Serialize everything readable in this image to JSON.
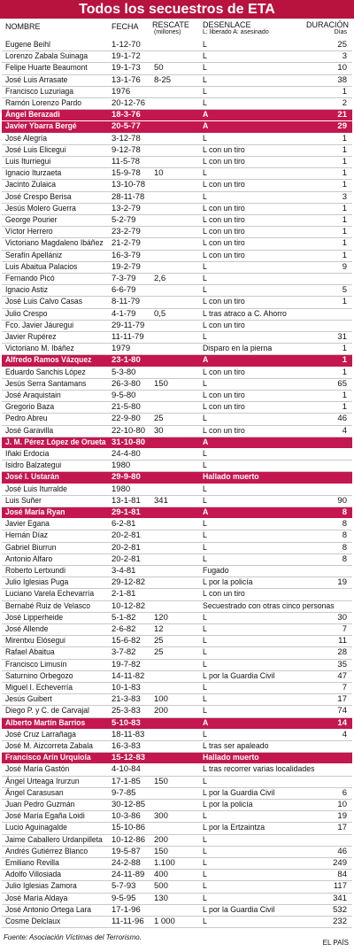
{
  "header": {
    "title": "Todos los secuestros de ETA"
  },
  "table": {
    "headers": {
      "name": "NOMBRE",
      "date": "FECHA",
      "ransom": "RESCATE",
      "ransom_unit": "(millones)",
      "outcome": "DESENLACE",
      "outcome_legend": "L: liberado A: asesinado",
      "days": "DURACIÓN",
      "days_unit": "Días"
    },
    "rows": [
      {
        "name": "Eugene Beihl",
        "date": "1-12-70",
        "outcome": "L",
        "days": "25"
      },
      {
        "name": "Lorenzo Zabala Suinaga",
        "date": "19-1-72",
        "outcome": "L",
        "days": "3"
      },
      {
        "name": "Felipe Huarte Beaumont",
        "date": "19-1-73",
        "ransom": "50",
        "outcome": "L",
        "days": "10"
      },
      {
        "name": "José Luis Arrasate",
        "date": "13-1-76",
        "ransom": "8-25",
        "outcome": "L",
        "days": "38"
      },
      {
        "name": "Francisco Luzuriaga",
        "date": "1976",
        "outcome": "L",
        "days": "1"
      },
      {
        "name": "Ramón Lorenzo Pardo",
        "date": "20-12-76",
        "outcome": "L",
        "days": "2"
      },
      {
        "name": "Ángel Berazadi",
        "date": "18-3-76",
        "outcome": "A",
        "days": "21",
        "highlight": true
      },
      {
        "name": "Javier Ybarra Bergé",
        "date": "20-5-77",
        "outcome": "A",
        "days": "29",
        "highlight": true
      },
      {
        "name": "José Alegría",
        "date": "3-12-78",
        "outcome": "L",
        "days": "1"
      },
      {
        "name": "José Luis Elicegui",
        "date": "9-12-78",
        "outcome": "L con un tiro",
        "days": "1"
      },
      {
        "name": "Luis Iturriegui",
        "date": "11-5-78",
        "outcome": "L con un tiro",
        "days": "1"
      },
      {
        "name": "Ignacio Iturzaeta",
        "date": "15-9-78",
        "ransom": "10",
        "outcome": "L",
        "days": "1"
      },
      {
        "name": "Jacinto Zulaica",
        "date": "13-10-78",
        "outcome": "L con un tiro",
        "days": "1"
      },
      {
        "name": "José Crespo Berisa",
        "date": "28-11-78",
        "outcome": "L",
        "days": "3"
      },
      {
        "name": "Jesús Molero Guerra",
        "date": "13-2-79",
        "outcome": "L con un tiro",
        "days": "1"
      },
      {
        "name": "George Pourier",
        "date": "5-2-79",
        "outcome": "L con un tiro",
        "days": "1"
      },
      {
        "name": "Víctor Herrero",
        "date": "23-2-79",
        "outcome": "L con un tiro",
        "days": "1"
      },
      {
        "name": "Victoriano Magdaleno Ibáñez",
        "date": "21-2-79",
        "outcome": "L con un tiro",
        "days": "1"
      },
      {
        "name": "Serafín Apellániz",
        "date": "16-3-79",
        "outcome": "L con un tiro",
        "days": "1"
      },
      {
        "name": "Luis Abaitua Palacios",
        "date": "19-2-79",
        "outcome": "L",
        "days": "9"
      },
      {
        "name": "Fernando Picó",
        "date": "7-3-79",
        "ransom": "2,6",
        "outcome": "L"
      },
      {
        "name": "Ignacio Astiz",
        "date": "6-6-79",
        "outcome": "L",
        "days": "5"
      },
      {
        "name": "José Luis Calvo Casas",
        "date": "8-11-79",
        "outcome": "L con un tiro",
        "days": "1"
      },
      {
        "name": "Julio Crespo",
        "date": "4-1-79",
        "ransom": "0,5",
        "outcome": "L tras atraco a C. Ahorro"
      },
      {
        "name": "Fco. Javier Jáuregui",
        "date": "29-11-79",
        "outcome": "L con un tiro"
      },
      {
        "name": "Javier Rupérez",
        "date": "11-11-79",
        "outcome": "L",
        "days": "31"
      },
      {
        "name": "Victoriano M. Ibáñez",
        "date": "1979",
        "outcome": "Disparo en la pierna",
        "days": "1"
      },
      {
        "name": "Alfredo Ramos Vázquez",
        "date": "23-1-80",
        "outcome": "A",
        "days": "1",
        "highlight": true
      },
      {
        "name": "Eduardo Sanchis López",
        "date": "5-3-80",
        "outcome": "L con un tiro",
        "days": "1"
      },
      {
        "name": "Jesús Serra Santamans",
        "date": "26-3-80",
        "ransom": "150",
        "outcome": "L",
        "days": "65"
      },
      {
        "name": "José Araquistain",
        "date": "9-5-80",
        "outcome": "L con un tiro",
        "days": "1"
      },
      {
        "name": "Gregorio Baza",
        "date": "21-5-80",
        "outcome": "L con un tiro",
        "days": "1"
      },
      {
        "name": "Pedro Abreu",
        "date": "22-9-80",
        "ransom": "25",
        "outcome": "L",
        "days": "46"
      },
      {
        "name": "José Garavilla",
        "date": "22-10-80",
        "ransom": "30",
        "outcome": "L con un tiro",
        "days": "4"
      },
      {
        "name": "J. M. Pérez López de Orueta",
        "date": "31-10-80",
        "outcome": "A",
        "highlight": true
      },
      {
        "name": "Iñaki Erdocia",
        "date": "24-4-80",
        "outcome": "L"
      },
      {
        "name": "Isidro Balzategui",
        "date": "1980",
        "outcome": "L"
      },
      {
        "name": "José I. Ustarán",
        "date": "29-9-80",
        "outcome": "Hallado muerto",
        "highlight": true
      },
      {
        "name": "José Luis Iturralde",
        "date": "1980",
        "outcome": "L"
      },
      {
        "name": "Luis Suñer",
        "date": "13-1-81",
        "ransom": "341",
        "outcome": "L",
        "days": "90"
      },
      {
        "name": "José María Ryan",
        "date": "29-1-81",
        "outcome": "A",
        "days": "8",
        "highlight": true
      },
      {
        "name": "Javier Egana",
        "date": "6-2-81",
        "outcome": "L",
        "days": "8"
      },
      {
        "name": "Hernán Díaz",
        "date": "20-2-81",
        "outcome": "L",
        "days": "8"
      },
      {
        "name": "Gabriel Biurrun",
        "date": "20-2-81",
        "outcome": "L",
        "days": "8"
      },
      {
        "name": "Antonio Alfaro",
        "date": "20-2-81",
        "outcome": "L",
        "days": "8"
      },
      {
        "name": "Roberto Lertxundi",
        "date": "3-4-81",
        "outcome": "Fugado"
      },
      {
        "name": "Julio Iglesias Puga",
        "date": "29-12-82",
        "outcome": "L por la policía",
        "days": "19"
      },
      {
        "name": "Luciano Varela Echevarría",
        "date": "2-1-81",
        "outcome": "L con un tiro"
      },
      {
        "name": "Bernabé Ruiz de Velasco",
        "date": "10-12-82",
        "outcome": "Secuestrado con otras cinco personas"
      },
      {
        "name": "José Lipperheide",
        "date": "5-1-82",
        "ransom": "120",
        "outcome": "L",
        "days": "30"
      },
      {
        "name": "José Allende",
        "date": "2-6-82",
        "ransom": "12",
        "outcome": "L",
        "days": "7"
      },
      {
        "name": "Mirentxu Elósegui",
        "date": "15-6-82",
        "ransom": "25",
        "outcome": "L",
        "days": "11"
      },
      {
        "name": "Rafael Abaitua",
        "date": "3-7-82",
        "ransom": "25",
        "outcome": "L",
        "days": "28"
      },
      {
        "name": "Francisco Limusín",
        "date": "19-7-82",
        "outcome": "L",
        "days": "35"
      },
      {
        "name": "Saturnino Orbegozo",
        "date": "14-11-82",
        "outcome": "L por la Guardia Civil",
        "days": "47"
      },
      {
        "name": "Miguel I. Echeverría",
        "date": "10-1-83",
        "outcome": "L",
        "days": "7"
      },
      {
        "name": "Jesús Guibert",
        "date": "21-3-83",
        "ransom": "100",
        "outcome": "L",
        "days": "17"
      },
      {
        "name": "Diego P. y C. de Carvajal",
        "date": "25-3-83",
        "ransom": "200",
        "outcome": "L",
        "days": "74"
      },
      {
        "name": "Alberto Martín Barrios",
        "date": "5-10-83",
        "outcome": "A",
        "days": "14",
        "highlight": true
      },
      {
        "name": "José Cruz Larrañaga",
        "date": "18-11-83",
        "outcome": "L",
        "days": "4"
      },
      {
        "name": "José M. Aizcorreta Zabala",
        "date": "16-3-83",
        "outcome": "L tras ser apaleado"
      },
      {
        "name": "Francisco Arín Urquiola",
        "date": "15-12-83",
        "outcome": "Hallado muerto",
        "highlight": true
      },
      {
        "name": "José María Gastón",
        "date": "4-10-84",
        "outcome": "L tras recorrer varias localidades"
      },
      {
        "name": "Ángel Urteaga Irurzun",
        "date": "17-1-85",
        "ransom": "150",
        "outcome": "L"
      },
      {
        "name": "Ángel Carasusan",
        "date": "9-7-85",
        "outcome": "L por la Guardia Civil",
        "days": "6"
      },
      {
        "name": "Juan Pedro Guzmán",
        "date": "30-12-85",
        "outcome": "L por la policía",
        "days": "10"
      },
      {
        "name": "José María Egaña Loidi",
        "date": "10-3-86",
        "ransom": "300",
        "outcome": "L",
        "days": "19"
      },
      {
        "name": "Lucio Aguinagalde",
        "date": "15-10-86",
        "outcome": "L por la Ertzaintza",
        "days": "17"
      },
      {
        "name": "Jaime Caballero Urdanpilleta",
        "date": "10-12-86",
        "ransom": "200",
        "outcome": "L"
      },
      {
        "name": "Andrés Gutiérrez Blanco",
        "date": "19-5-87",
        "ransom": "150",
        "outcome": "L",
        "days": "46"
      },
      {
        "name": "Emiliano Revilla",
        "date": "24-2-88",
        "ransom": "1.100",
        "outcome": "L",
        "days": "249"
      },
      {
        "name": "Adolfo Villosiada",
        "date": "24-11-89",
        "ransom": "400",
        "outcome": "L",
        "days": "84"
      },
      {
        "name": "Julio Iglesias Zamora",
        "date": "5-7-93",
        "ransom": "500",
        "outcome": "L",
        "days": "117"
      },
      {
        "name": "José María Aldaya",
        "date": "9-5-95",
        "ransom": "130",
        "outcome": "L",
        "days": "341"
      },
      {
        "name": "José Antonio Ortega Lara",
        "date": "17-1-96",
        "outcome": "L por la Guardia Civil",
        "days": "532"
      },
      {
        "name": "Cosme Delclaux",
        "date": "11-11-96",
        "ransom": "1 000",
        "outcome": "L",
        "days": "232"
      }
    ]
  },
  "footer": {
    "source": "Fuente: Asociación Víctimas del Terrorismo.",
    "publisher": "EL PAÍS"
  }
}
